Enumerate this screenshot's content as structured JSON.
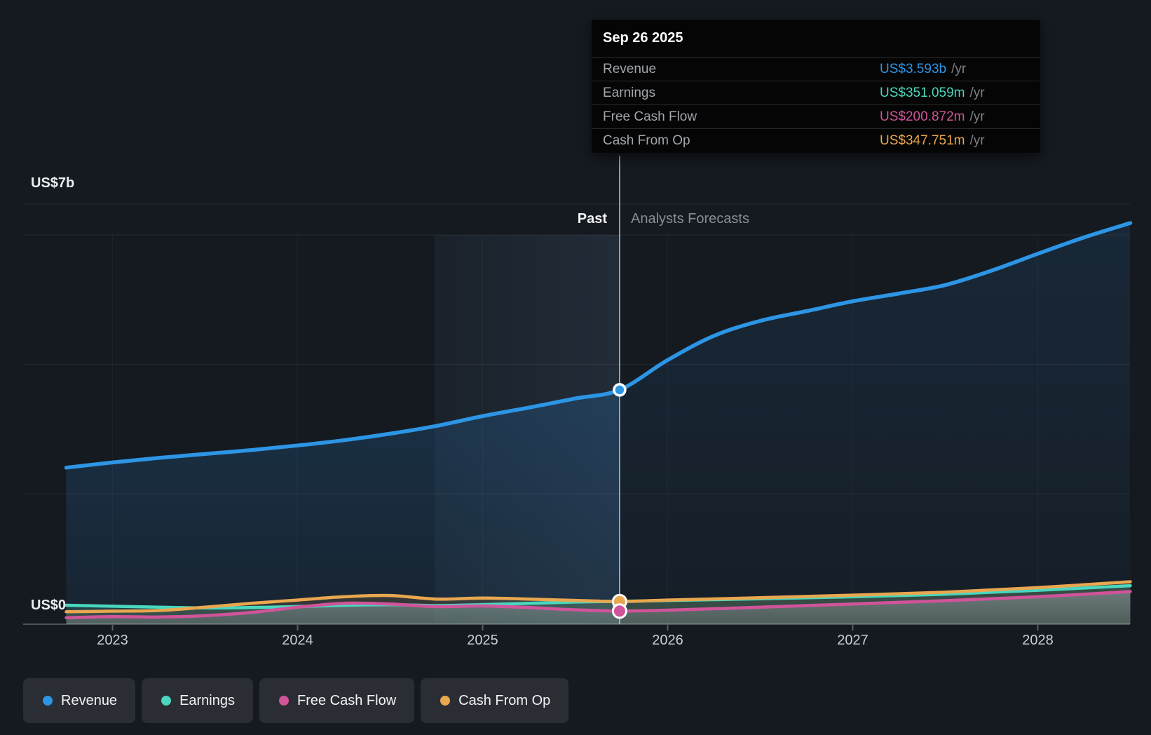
{
  "page": {
    "background": "#151a20"
  },
  "tooltip": {
    "date": "Sep 26 2025",
    "rows": [
      {
        "label": "Revenue",
        "value": "US$3.593b",
        "suffix": "/yr",
        "color": "#2d95e5"
      },
      {
        "label": "Earnings",
        "value": "US$351.059m",
        "suffix": "/yr",
        "color": "#49d7bf"
      },
      {
        "label": "Free Cash Flow",
        "value": "US$200.872m",
        "suffix": "/yr",
        "color": "#d0549a"
      },
      {
        "label": "Cash From Op",
        "value": "US$347.751m",
        "suffix": "/yr",
        "color": "#e9a74f"
      }
    ]
  },
  "y_axis": {
    "top": "US$7b",
    "zero": "US$0"
  },
  "x_axis": {
    "labels": [
      "2023",
      "2024",
      "2025",
      "2026",
      "2027",
      "2028"
    ]
  },
  "annotations": {
    "past": "Past",
    "forecasts": "Analysts Forecasts"
  },
  "legend": {
    "items": [
      {
        "label": "Revenue",
        "color": "#2d95e5"
      },
      {
        "label": "Earnings",
        "color": "#49d7bf"
      },
      {
        "label": "Free Cash Flow",
        "color": "#d0549a"
      },
      {
        "label": "Cash From Op",
        "color": "#e9a74f"
      }
    ]
  },
  "chart_data": {
    "type": "line",
    "unit": "US$ billions per year",
    "x_unit": "calendar year (decimal)",
    "xlim": [
      2022.75,
      2028.5
    ],
    "ylim": [
      0,
      7
    ],
    "grid": "horizontal",
    "x_tick_labels": [
      "2023",
      "2024",
      "2025",
      "2026",
      "2027",
      "2028"
    ],
    "divider_x": 2025.74,
    "tooltip_date": "Sep 26 2025",
    "past_label": "Past",
    "forecast_label": "Analysts Forecasts",
    "highlight_window_years": 1,
    "series": [
      {
        "name": "Revenue",
        "color": "#2d95e5",
        "x": [
          2022.75,
          2023.0,
          2023.25,
          2023.5,
          2023.75,
          2024.0,
          2024.25,
          2024.5,
          2024.75,
          2025.0,
          2025.25,
          2025.5,
          2025.74,
          2026.0,
          2026.25,
          2026.5,
          2026.75,
          2027.0,
          2027.25,
          2027.5,
          2027.75,
          2028.0,
          2028.25,
          2028.5
        ],
        "values_busd": [
          2.4,
          2.48,
          2.55,
          2.61,
          2.67,
          2.74,
          2.82,
          2.92,
          3.04,
          3.19,
          3.32,
          3.46,
          3.593,
          4.05,
          4.42,
          4.65,
          4.8,
          4.95,
          5.07,
          5.2,
          5.42,
          5.68,
          5.93,
          6.15
        ]
      },
      {
        "name": "Earnings",
        "color": "#49d7bf",
        "x": [
          2022.75,
          2023.0,
          2023.25,
          2023.5,
          2023.75,
          2024.0,
          2024.25,
          2024.5,
          2024.75,
          2025.0,
          2025.25,
          2025.5,
          2025.74,
          2026.0,
          2026.5,
          2027.0,
          2027.5,
          2028.0,
          2028.5
        ],
        "values_busd": [
          0.29,
          0.275,
          0.26,
          0.25,
          0.255,
          0.27,
          0.29,
          0.3,
          0.285,
          0.3,
          0.32,
          0.34,
          0.351,
          0.362,
          0.39,
          0.42,
          0.46,
          0.52,
          0.59
        ]
      },
      {
        "name": "Free Cash Flow",
        "color": "#d0549a",
        "x": [
          2022.75,
          2023.0,
          2023.25,
          2023.5,
          2023.75,
          2024.0,
          2024.25,
          2024.5,
          2024.75,
          2025.0,
          2025.25,
          2025.5,
          2025.74,
          2026.0,
          2026.5,
          2027.0,
          2027.5,
          2028.0,
          2028.5
        ],
        "values_busd": [
          0.1,
          0.115,
          0.11,
          0.13,
          0.18,
          0.26,
          0.32,
          0.31,
          0.27,
          0.28,
          0.255,
          0.22,
          0.201,
          0.215,
          0.26,
          0.31,
          0.36,
          0.42,
          0.5
        ]
      },
      {
        "name": "Cash From Op",
        "color": "#e9a74f",
        "x": [
          2022.75,
          2023.0,
          2023.25,
          2023.5,
          2023.75,
          2024.0,
          2024.25,
          2024.5,
          2024.75,
          2025.0,
          2025.25,
          2025.5,
          2025.74,
          2026.0,
          2026.5,
          2027.0,
          2027.5,
          2028.0,
          2028.5
        ],
        "values_busd": [
          0.19,
          0.2,
          0.21,
          0.26,
          0.32,
          0.37,
          0.42,
          0.44,
          0.385,
          0.4,
          0.385,
          0.365,
          0.348,
          0.37,
          0.405,
          0.445,
          0.49,
          0.56,
          0.65
        ]
      }
    ],
    "markers": [
      {
        "series": "Revenue",
        "x": 2025.74,
        "value_busd": 3.593,
        "display": "US$3.593b /yr"
      },
      {
        "series": "Cash From Op",
        "x": 2025.74,
        "value_busd": 0.347751,
        "display": "US$347.751m /yr"
      },
      {
        "series": "Free Cash Flow",
        "x": 2025.74,
        "value_busd": 0.200872,
        "display": "US$200.872m /yr"
      }
    ]
  }
}
